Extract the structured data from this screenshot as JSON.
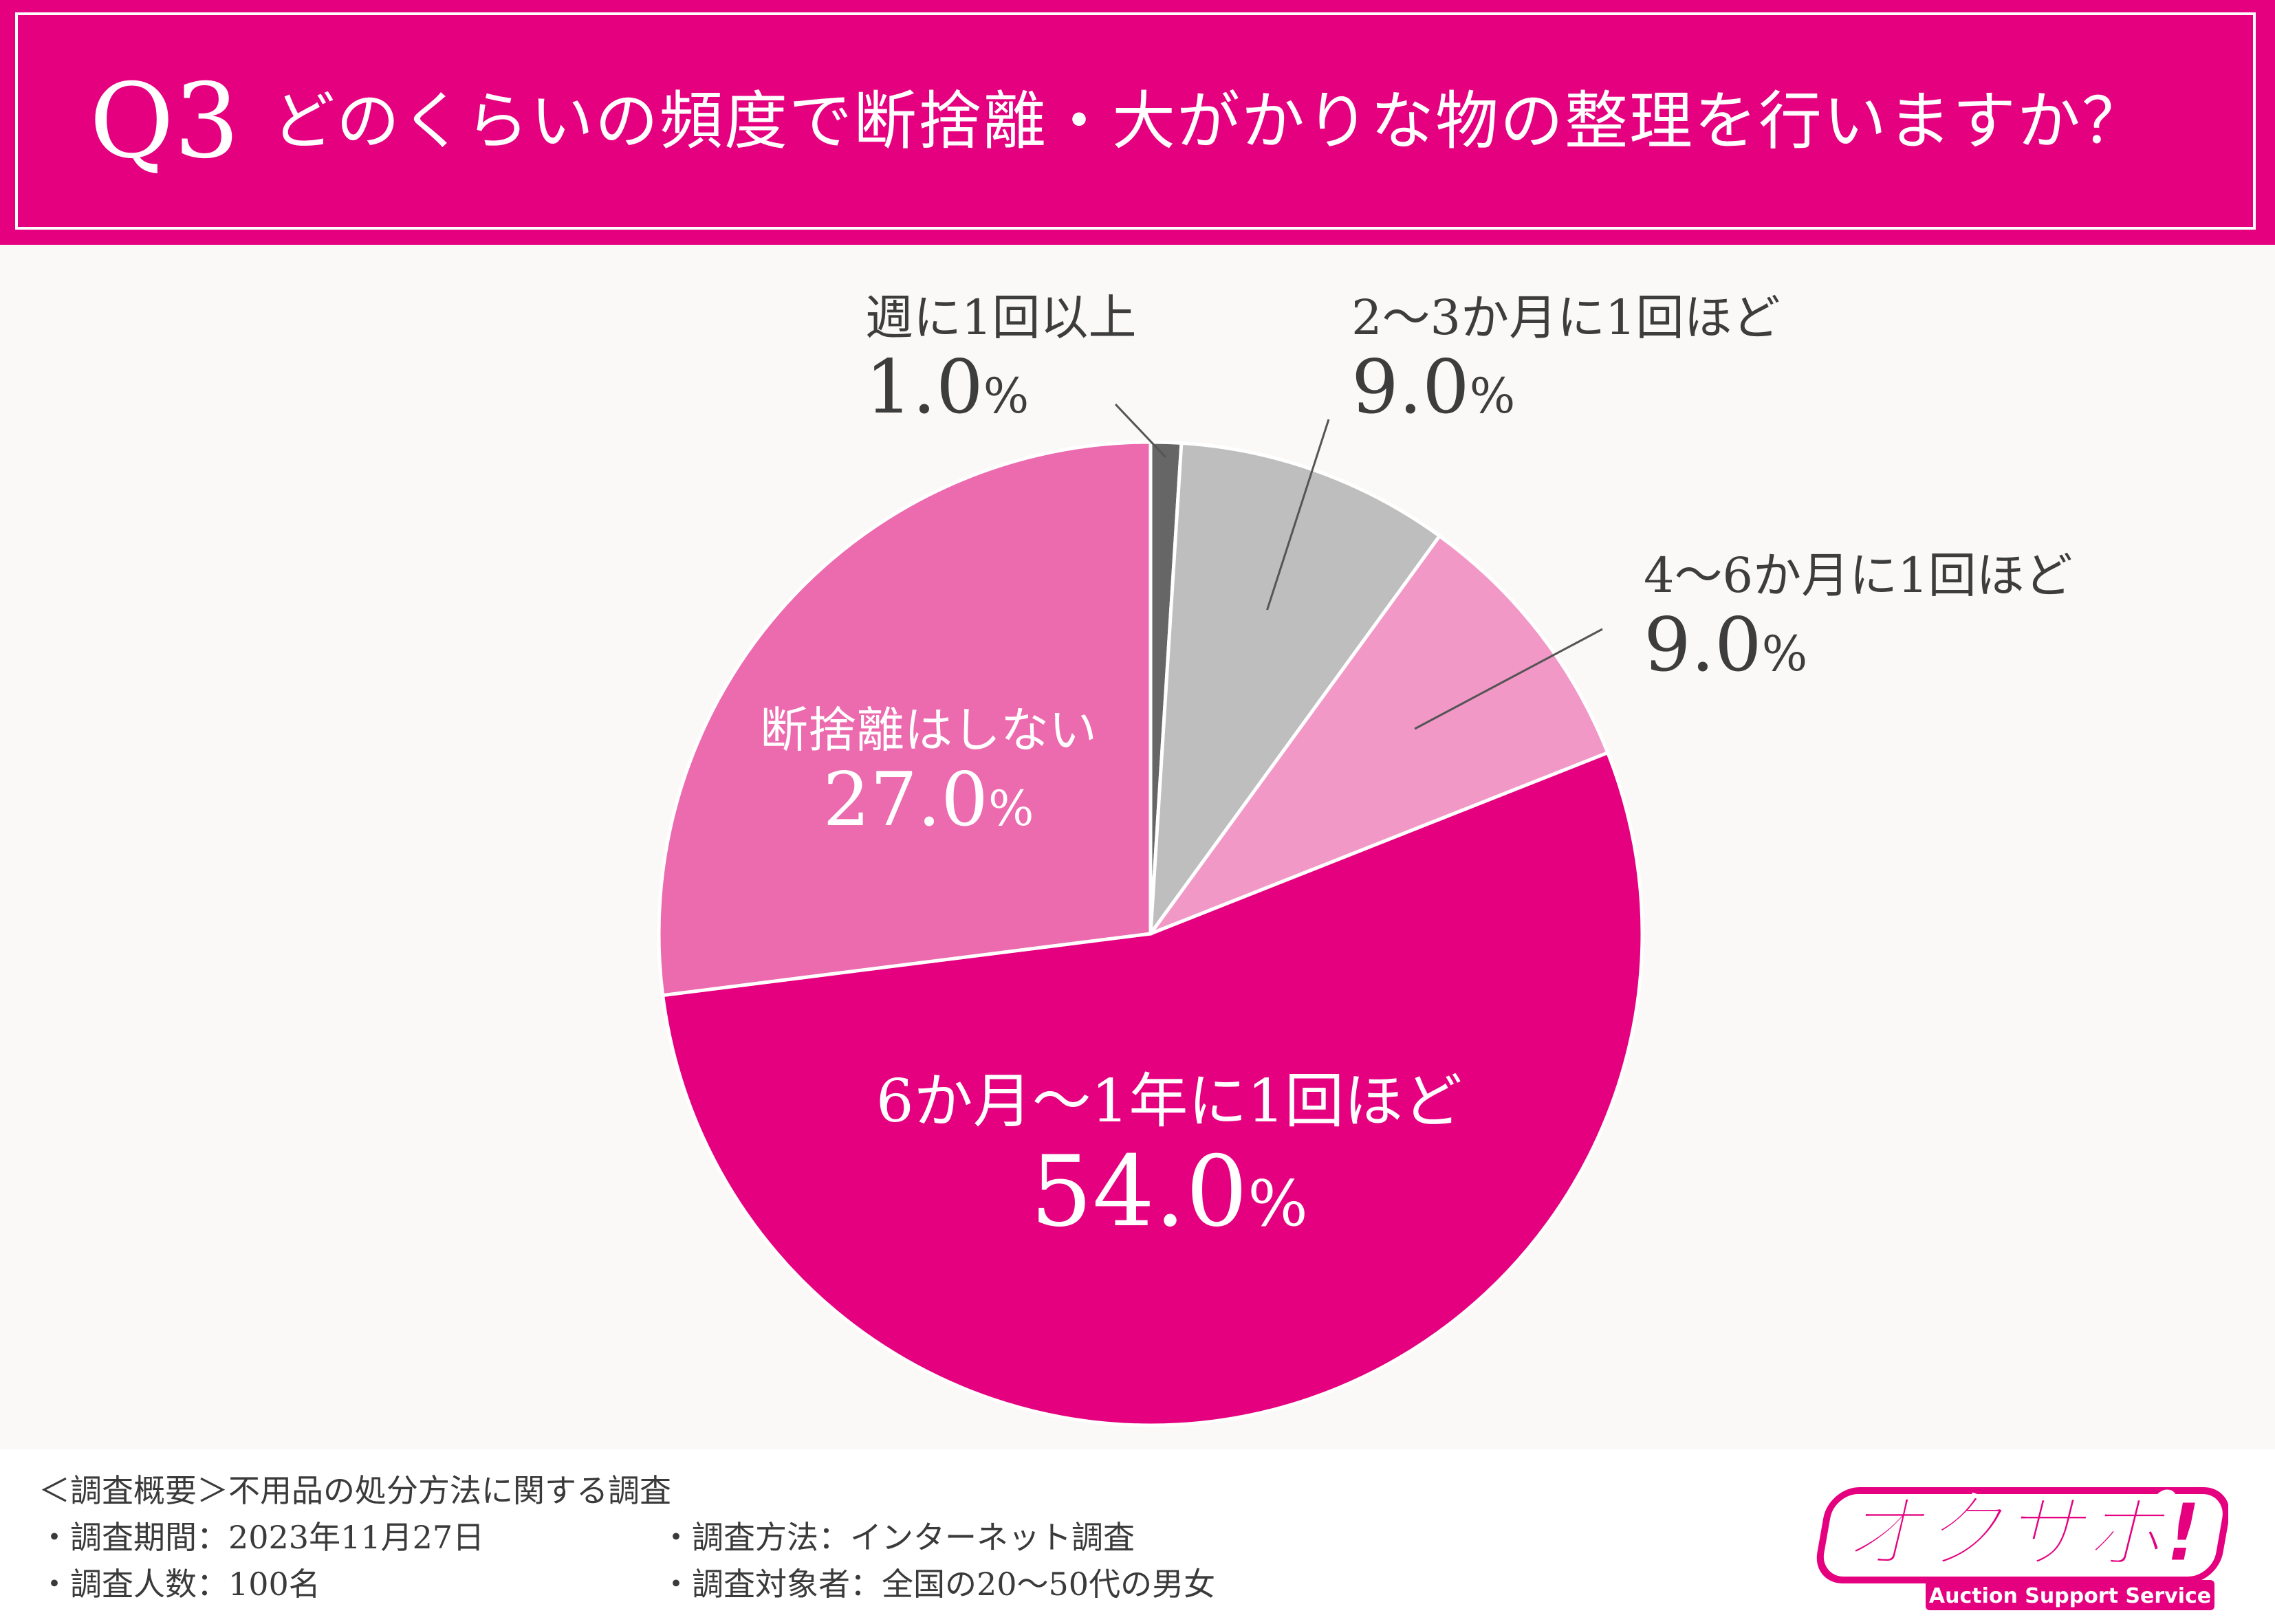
{
  "header": {
    "q_number": "Q3",
    "question": "どのくらいの頻度で断捨離・大がかりな物の整理を行いますか？"
  },
  "chart_data": {
    "type": "pie",
    "categories": [
      "週に1回以上",
      "2〜3か月に1回ほど",
      "4〜6か月に1回ほど",
      "6か月〜1年に1回ほど",
      "断捨離はしない"
    ],
    "values": [
      1.0,
      9.0,
      9.0,
      54.0,
      27.0
    ],
    "value_labels": [
      "1.0",
      "9.0",
      "9.0",
      "54.0",
      "27.0"
    ],
    "unit": "%",
    "colors": [
      "#666666",
      "#bebebe",
      "#f298c6",
      "#e4007f",
      "#ec6aae"
    ],
    "start": "12 o'clock",
    "direction": "clockwise"
  },
  "footer": {
    "summary": "＜調査概要＞不用品の処分方法に関する調査",
    "period": "・調査期間：2023年11月27日",
    "count": "・調査人数：100名",
    "method": "・調査方法：インターネット調査",
    "target": "・調査対象者：全国の20〜50代の男女"
  },
  "logo": {
    "text": "オクサポ!",
    "subtext": "Auction Support Service",
    "color": "#e4007f"
  }
}
